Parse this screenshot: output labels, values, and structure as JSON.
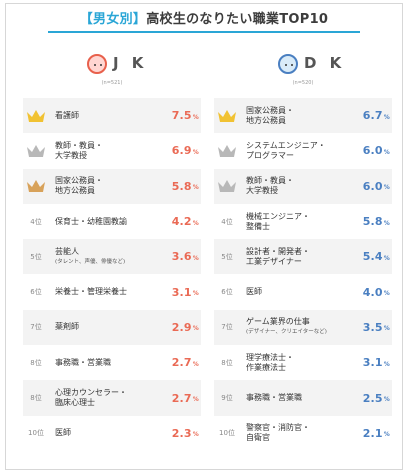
{
  "title": {
    "tag": "【男女別】",
    "text": "高校生のなりたい職業TOP10"
  },
  "colors": {
    "accent": "#2aa6d6",
    "jk_value": "#ea6a55",
    "dk_value": "#4a7fc1",
    "gold": "#f1c232",
    "silver": "#b8b8b8",
    "bronze": "#d8a25a"
  },
  "chart_data": [
    {
      "type": "table",
      "title": "J K",
      "sample": "(n=521)",
      "rows": [
        {
          "rank": "",
          "medal": "gold",
          "label": "看護師",
          "sub": "",
          "value": "7.5",
          "unit": "%"
        },
        {
          "rank": "",
          "medal": "silver",
          "label": "教師・教員・\n大学教授",
          "sub": "",
          "value": "6.9",
          "unit": "%"
        },
        {
          "rank": "",
          "medal": "bronze",
          "label": "国家公務員・\n地方公務員",
          "sub": "",
          "value": "5.8",
          "unit": "%"
        },
        {
          "rank": "4位",
          "medal": "",
          "label": "保育士・幼稚園教諭",
          "sub": "",
          "value": "4.2",
          "unit": "%"
        },
        {
          "rank": "5位",
          "medal": "",
          "label": "芸能人",
          "sub": "(タレント、声優、俳優など)",
          "value": "3.6",
          "unit": "%"
        },
        {
          "rank": "6位",
          "medal": "",
          "label": "栄養士・管理栄養士",
          "sub": "",
          "value": "3.1",
          "unit": "%"
        },
        {
          "rank": "7位",
          "medal": "",
          "label": "薬剤師",
          "sub": "",
          "value": "2.9",
          "unit": "%"
        },
        {
          "rank": "8位",
          "medal": "",
          "label": "事務職・営業職",
          "sub": "",
          "value": "2.7",
          "unit": "%"
        },
        {
          "rank": "8位",
          "medal": "",
          "label": "心理カウンセラー・\n臨床心理士",
          "sub": "",
          "value": "2.7",
          "unit": "%"
        },
        {
          "rank": "10位",
          "medal": "",
          "label": "医師",
          "sub": "",
          "value": "2.3",
          "unit": "%"
        }
      ]
    },
    {
      "type": "table",
      "title": "D K",
      "sample": "(n=520)",
      "rows": [
        {
          "rank": "",
          "medal": "gold",
          "label": "国家公務員・\n地方公務員",
          "sub": "",
          "value": "6.7",
          "unit": "%"
        },
        {
          "rank": "",
          "medal": "silver",
          "label": "システムエンジニア・\nプログラマー",
          "sub": "",
          "value": "6.0",
          "unit": "%"
        },
        {
          "rank": "",
          "medal": "silver",
          "label": "教師・教員・\n大学教授",
          "sub": "",
          "value": "6.0",
          "unit": "%"
        },
        {
          "rank": "4位",
          "medal": "",
          "label": "機械エンジニア・\n整備士",
          "sub": "",
          "value": "5.8",
          "unit": "%"
        },
        {
          "rank": "5位",
          "medal": "",
          "label": "設計者・開発者・\n工業デザイナー",
          "sub": "",
          "value": "5.4",
          "unit": "%"
        },
        {
          "rank": "6位",
          "medal": "",
          "label": "医師",
          "sub": "",
          "value": "4.0",
          "unit": "%"
        },
        {
          "rank": "7位",
          "medal": "",
          "label": "ゲーム業界の仕事",
          "sub": "(デザイナー、クリエイターなど)",
          "value": "3.5",
          "unit": "%"
        },
        {
          "rank": "8位",
          "medal": "",
          "label": "理学療法士・\n作業療法士",
          "sub": "",
          "value": "3.1",
          "unit": "%"
        },
        {
          "rank": "9位",
          "medal": "",
          "label": "事務職・営業職",
          "sub": "",
          "value": "2.5",
          "unit": "%"
        },
        {
          "rank": "10位",
          "medal": "",
          "label": "警察官・消防官・\n自衛官",
          "sub": "",
          "value": "2.1",
          "unit": "%"
        }
      ]
    }
  ]
}
